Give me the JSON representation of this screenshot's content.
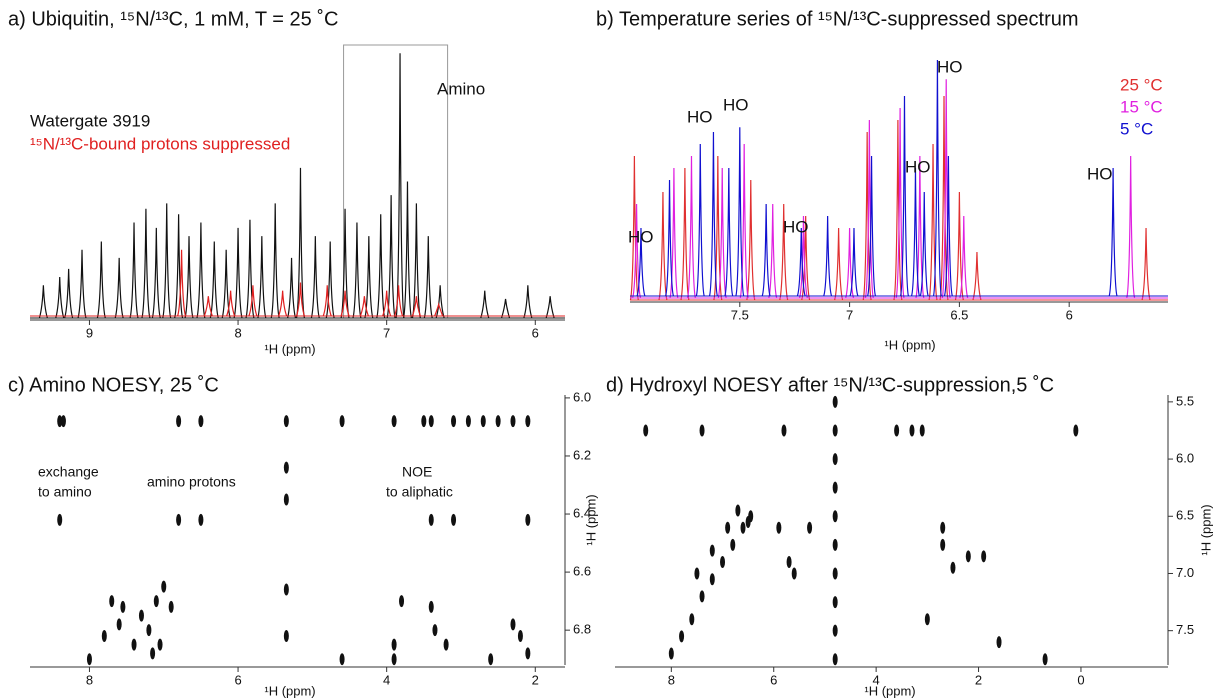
{
  "chart_data": [
    {
      "type": "spectrum",
      "title": "a) Ubiquitin, ¹⁵N/¹³C, 1 mM, T = 25 ˚C",
      "x_label": "¹H (ppm)",
      "xlim": [
        9.4,
        5.8
      ],
      "xticks": [
        9,
        8,
        7,
        6
      ],
      "ylim": [
        0,
        1
      ],
      "highlight": [
        7.29,
        6.59
      ],
      "annotations": [
        "Amino"
      ],
      "series": [
        {
          "name": "Watergate 3919",
          "color": "#111111",
          "x": [
            9.31,
            9.2,
            9.14,
            9.05,
            8.92,
            8.8,
            8.7,
            8.62,
            8.55,
            8.48,
            8.4,
            8.33,
            8.25,
            8.16,
            8.08,
            8.0,
            7.92,
            7.84,
            7.75,
            7.64,
            7.58,
            7.48,
            7.38,
            7.28,
            7.2,
            7.12,
            7.04,
            6.97,
            6.91,
            6.86,
            6.8,
            6.72,
            6.64,
            6.34,
            6.2,
            6.05,
            5.9
          ],
          "values": [
            0.12,
            0.15,
            0.18,
            0.25,
            0.28,
            0.22,
            0.35,
            0.4,
            0.33,
            0.42,
            0.38,
            0.3,
            0.35,
            0.28,
            0.25,
            0.33,
            0.36,
            0.3,
            0.42,
            0.22,
            0.55,
            0.3,
            0.28,
            0.4,
            0.35,
            0.3,
            0.38,
            0.45,
            0.97,
            0.5,
            0.42,
            0.3,
            0.12,
            0.1,
            0.07,
            0.12,
            0.08
          ]
        },
        {
          "name": "¹⁵N/¹³C-bound protons suppressed",
          "color": "#e02020",
          "x": [
            8.38,
            8.2,
            8.05,
            7.9,
            7.7,
            7.58,
            7.4,
            7.28,
            7.15,
            7.0,
            6.92,
            6.8,
            6.65
          ],
          "values": [
            0.25,
            0.08,
            0.1,
            0.12,
            0.1,
            0.13,
            0.12,
            0.1,
            0.08,
            0.1,
            0.12,
            0.08,
            0.05
          ]
        }
      ]
    },
    {
      "type": "spectrum",
      "title": "b) Temperature series of ¹⁵N/¹³C-suppressed spectrum",
      "x_label": "¹H (ppm)",
      "xlim": [
        8.0,
        5.55
      ],
      "xticks": [
        7.5,
        7,
        6.5,
        6
      ],
      "ylim": [
        0,
        1
      ],
      "annotations": [
        "HO",
        "HO",
        "HO",
        "HO",
        "HO",
        "HO",
        "HO"
      ],
      "series": [
        {
          "name": "25 °C",
          "color": "#e03030",
          "x": [
            7.98,
            7.85,
            7.75,
            7.6,
            7.45,
            7.3,
            7.2,
            7.05,
            6.92,
            6.78,
            6.62,
            6.57,
            6.5,
            6.42,
            5.65
          ],
          "values": [
            0.6,
            0.45,
            0.55,
            0.6,
            0.5,
            0.4,
            0.35,
            0.3,
            0.7,
            0.75,
            0.65,
            0.85,
            0.45,
            0.2,
            0.3
          ]
        },
        {
          "name": "15 °C",
          "color": "#e020e0",
          "x": [
            7.97,
            7.8,
            7.72,
            7.58,
            7.48,
            7.35,
            7.21,
            7.0,
            6.91,
            6.77,
            6.68,
            6.56,
            6.48,
            5.72
          ],
          "values": [
            0.4,
            0.55,
            0.6,
            0.55,
            0.65,
            0.4,
            0.35,
            0.3,
            0.75,
            0.8,
            0.6,
            0.92,
            0.35,
            0.6
          ]
        },
        {
          "name": "5 °C",
          "color": "#1010d0",
          "x": [
            7.95,
            7.82,
            7.68,
            7.62,
            7.55,
            7.5,
            7.38,
            7.22,
            7.1,
            6.98,
            6.9,
            6.75,
            6.7,
            6.66,
            6.6,
            6.55,
            5.8
          ],
          "values": [
            0.3,
            0.5,
            0.65,
            0.7,
            0.55,
            0.72,
            0.4,
            0.3,
            0.35,
            0.3,
            0.6,
            0.85,
            0.55,
            0.45,
            1.0,
            0.6,
            0.55
          ]
        }
      ]
    },
    {
      "type": "contour",
      "title": "c) Amino NOESY, 25 ˚C",
      "x_label": "¹H (ppm)",
      "y_label": "¹H (ppm)",
      "xlim": [
        8.8,
        1.6
      ],
      "xticks": [
        8,
        6,
        4,
        2
      ],
      "ylim": [
        5.99,
        6.92
      ],
      "yticks": [
        {
          "value": 6.0,
          "label": "6.0"
        },
        6.2,
        6.4,
        6.6,
        6.8
      ],
      "annotations": [
        "exchange",
        "to amino",
        "amino protons",
        "NOE",
        "to aliphatic"
      ],
      "x": [
        8.4,
        8.35,
        6.8,
        6.5,
        5.35,
        4.6,
        3.9,
        3.5,
        3.4,
        3.1,
        2.9,
        2.7,
        2.5,
        2.3,
        2.1,
        8.4,
        6.8,
        6.5,
        3.4,
        3.1,
        2.1,
        7.7,
        7.6,
        7.55,
        7.3,
        7.2,
        7.1,
        7.0,
        6.9,
        7.05,
        7.15,
        7.4,
        7.8,
        8.0,
        5.35,
        5.35,
        5.35,
        5.35,
        4.6,
        3.9,
        3.9,
        3.4,
        3.35,
        3.2,
        2.6,
        2.3,
        2.2,
        2.1,
        3.8
      ],
      "values": [
        6.08,
        6.08,
        6.08,
        6.08,
        6.08,
        6.08,
        6.08,
        6.08,
        6.08,
        6.08,
        6.08,
        6.08,
        6.08,
        6.08,
        6.08,
        6.42,
        6.42,
        6.42,
        6.42,
        6.42,
        6.42,
        6.7,
        6.78,
        6.72,
        6.75,
        6.8,
        6.7,
        6.65,
        6.72,
        6.85,
        6.88,
        6.85,
        6.82,
        6.9,
        6.24,
        6.35,
        6.66,
        6.82,
        6.9,
        6.85,
        6.9,
        6.72,
        6.8,
        6.85,
        6.9,
        6.78,
        6.82,
        6.88,
        6.7
      ]
    },
    {
      "type": "contour",
      "title": "d) Hydroxyl NOESY after ¹⁵N/¹³C-suppression,5 ˚C",
      "x_label": "¹H (ppm)",
      "y_label": "¹H (ppm)",
      "xlim": [
        9.1,
        -1.7
      ],
      "xticks": [
        8,
        6,
        4,
        2,
        0
      ],
      "ylim": [
        5.44,
        7.8
      ],
      "yticks": [
        5.5,
        {
          "value": 6.0,
          "label": "6.0"
        },
        6.5,
        {
          "value": 7.0,
          "label": "7.0"
        },
        7.5
      ],
      "x": [
        8.5,
        7.4,
        5.8,
        3.6,
        3.3,
        3.1,
        0.1,
        8.0,
        7.8,
        7.6,
        7.4,
        7.2,
        7.0,
        6.8,
        6.6,
        6.45,
        7.5,
        7.2,
        6.9,
        6.7,
        6.5,
        4.8,
        4.8,
        4.8,
        4.8,
        4.8,
        4.8,
        4.8,
        4.8,
        4.8,
        4.8,
        2.7,
        2.7,
        2.5,
        2.2,
        1.9,
        3.0,
        1.6,
        5.3,
        5.7,
        5.6,
        0.7,
        5.9
      ],
      "values": [
        5.75,
        5.75,
        5.75,
        5.75,
        5.75,
        5.75,
        5.75,
        7.7,
        7.55,
        7.4,
        7.2,
        7.05,
        6.9,
        6.75,
        6.6,
        6.5,
        7.0,
        6.8,
        6.6,
        6.45,
        6.55,
        5.5,
        5.75,
        6.0,
        6.25,
        6.5,
        6.75,
        7.0,
        7.25,
        7.5,
        7.75,
        6.6,
        6.75,
        6.95,
        6.85,
        6.85,
        7.4,
        7.6,
        6.6,
        6.9,
        7.0,
        7.75,
        6.6
      ]
    }
  ]
}
